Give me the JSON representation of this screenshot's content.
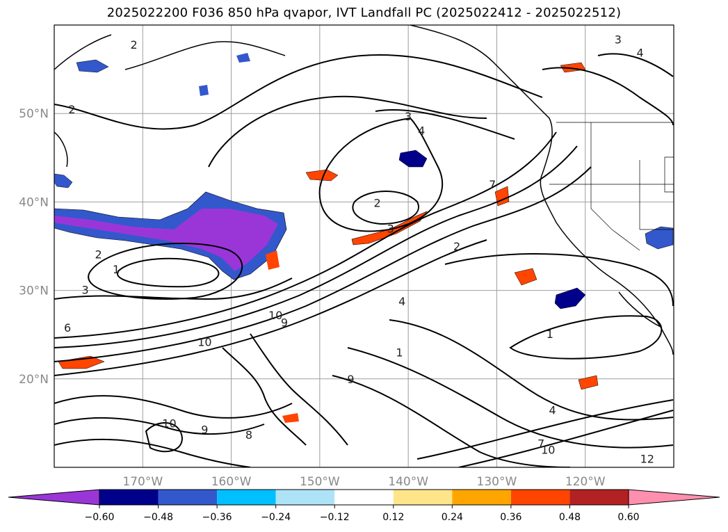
{
  "title": "2025022200 F036 850 hPa qvapor, IVT Landfall PC (2025022412 - 2025022512)",
  "map": {
    "lon_range": [
      -180,
      -110
    ],
    "lat_range": [
      10,
      60
    ],
    "lat_ticks": [
      {
        "lat": 50,
        "label": "50°N"
      },
      {
        "lat": 40,
        "label": "40°N"
      },
      {
        "lat": 30,
        "label": "30°N"
      },
      {
        "lat": 20,
        "label": "20°N"
      }
    ],
    "lon_ticks": [
      {
        "lon": -170,
        "label": "170°W"
      },
      {
        "lon": -160,
        "label": "160°W"
      },
      {
        "lon": -150,
        "label": "150°W"
      },
      {
        "lon": -140,
        "label": "140°W"
      },
      {
        "lon": -130,
        "label": "130°W"
      },
      {
        "lon": -120,
        "label": "120°W"
      }
    ],
    "grid": true,
    "contour_labels": [
      {
        "text": "2",
        "lon": -171,
        "lat": 57.8
      },
      {
        "text": "2",
        "lon": -178,
        "lat": 50.5
      },
      {
        "text": "3",
        "lon": -140,
        "lat": 49.7
      },
      {
        "text": "4",
        "lon": -138.5,
        "lat": 48.1
      },
      {
        "text": "2",
        "lon": -143.5,
        "lat": 39.9
      },
      {
        "text": "3",
        "lon": -142,
        "lat": 37.0
      },
      {
        "text": "2",
        "lon": -134.5,
        "lat": 35.0
      },
      {
        "text": "2",
        "lon": -175,
        "lat": 34.1
      },
      {
        "text": "1",
        "lon": -173,
        "lat": 32.4
      },
      {
        "text": "3",
        "lon": -176.5,
        "lat": 30.1
      },
      {
        "text": "6",
        "lon": -178.5,
        "lat": 25.8
      },
      {
        "text": "10",
        "lon": -163,
        "lat": 24.2
      },
      {
        "text": "10",
        "lon": -155,
        "lat": 27.2
      },
      {
        "text": "9",
        "lon": -154,
        "lat": 26.4
      },
      {
        "text": "9",
        "lon": -146.5,
        "lat": 20.0
      },
      {
        "text": "8",
        "lon": -158,
        "lat": 13.7
      },
      {
        "text": "9",
        "lon": -163,
        "lat": 14.3
      },
      {
        "text": "10",
        "lon": -167,
        "lat": 15.0
      },
      {
        "text": "1",
        "lon": -141,
        "lat": 23.0
      },
      {
        "text": "4",
        "lon": -140.7,
        "lat": 28.8
      },
      {
        "text": "1",
        "lon": -124,
        "lat": 25.1
      },
      {
        "text": "4",
        "lon": -123.7,
        "lat": 16.5
      },
      {
        "text": "7",
        "lon": -125,
        "lat": 12.7
      },
      {
        "text": "10",
        "lon": -124.2,
        "lat": 12.0
      },
      {
        "text": "12",
        "lon": -113,
        "lat": 11.0
      },
      {
        "text": "4",
        "lon": -113.8,
        "lat": 56.9
      },
      {
        "text": "3",
        "lon": -116.3,
        "lat": 58.4
      },
      {
        "text": "7",
        "lon": -130.5,
        "lat": 42.0
      }
    ],
    "features": [
      {
        "name": "north-pacific-moist-plume",
        "color": "#9a36d8"
      },
      {
        "name": "subtropical-dry-anomaly",
        "color": "#ff4a00"
      }
    ]
  },
  "colorbar": {
    "levels": [
      "−0.60",
      "−0.48",
      "−0.36",
      "−0.24",
      "−0.12",
      "0.12",
      "0.24",
      "0.36",
      "0.48",
      "0.60"
    ],
    "colors": [
      "#9a36d8",
      "#00008b",
      "#3358cc",
      "#00bfff",
      "#aee3f7",
      "#ffffff",
      "#ffe58a",
      "#ffa500",
      "#ff4500",
      "#b22222",
      "#ff8fae"
    ],
    "extend": "both"
  }
}
